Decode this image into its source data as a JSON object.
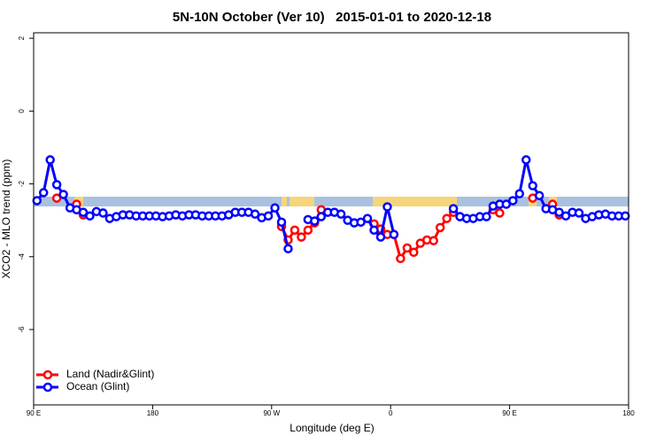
{
  "chart_data": {
    "type": "line",
    "title": "5N-10N October (Ver 10)   2015-01-01 to 2020-12-18",
    "x_label": "Longitude (deg E)",
    "y_label": "XCO2 - MLO trend (ppm)",
    "xlim": [
      90,
      540
    ],
    "xticks": [
      {
        "value": 90,
        "label": "90 E"
      },
      {
        "value": 180,
        "label": "180"
      },
      {
        "value": 270,
        "label": "90 W"
      },
      {
        "value": 360,
        "label": "0"
      },
      {
        "value": 450,
        "label": "90 E"
      },
      {
        "value": 540,
        "label": "180"
      }
    ],
    "ylim": [
      -8.07,
      2.15
    ],
    "yticks": [
      -6,
      -4,
      -2,
      0,
      2
    ],
    "legend": "bottom-left",
    "x": [
      92.5,
      97.5,
      102.5,
      107.5,
      112.5,
      117.5,
      122.5,
      127.5,
      132.5,
      137.5,
      142.5,
      147.5,
      152.5,
      157.5,
      162.5,
      167.5,
      172.5,
      177.5,
      182.5,
      187.5,
      192.5,
      197.5,
      202.5,
      207.5,
      212.5,
      217.5,
      222.5,
      227.5,
      232.5,
      237.5,
      242.5,
      247.5,
      252.5,
      257.5,
      262.5,
      267.5,
      272.5,
      277.5,
      282.5,
      287.5,
      292.5,
      297.5,
      302.5,
      307.5,
      312.5,
      317.5,
      322.5,
      327.5,
      332.5,
      337.5,
      342.5,
      347.5,
      352.5,
      357.5,
      362.5,
      367.5,
      372.5,
      377.5,
      382.5,
      387.5,
      392.5,
      397.5,
      402.5,
      407.5,
      412.5,
      417.5,
      422.5,
      427.5,
      432.5,
      437.5,
      442.5,
      447.5,
      452.5,
      457.5,
      462.5,
      467.5,
      472.5,
      477.5,
      482.5,
      487.5,
      492.5,
      497.5,
      502.5,
      507.5,
      512.5,
      517.5,
      522.5,
      527.5,
      532.5,
      537.5
    ],
    "series": [
      {
        "name": "Land (Nadir&Glint)",
        "color": "#ff0000",
        "values": [
          null,
          null,
          null,
          -2.39,
          null,
          null,
          -2.56,
          -2.85,
          null,
          null,
          null,
          null,
          null,
          null,
          null,
          null,
          null,
          null,
          null,
          null,
          null,
          null,
          null,
          null,
          null,
          null,
          null,
          null,
          null,
          null,
          null,
          null,
          null,
          null,
          null,
          null,
          null,
          -3.17,
          -3.54,
          -3.27,
          -3.46,
          -3.27,
          -3.07,
          -2.71,
          null,
          null,
          null,
          null,
          null,
          null,
          null,
          -3.1,
          -3.24,
          -3.39,
          -3.39,
          -4.05,
          -3.76,
          -3.88,
          -3.63,
          -3.54,
          -3.56,
          -3.2,
          -2.95,
          -2.78,
          -2.9,
          null,
          null,
          null,
          null,
          -2.71,
          -2.8,
          null,
          null,
          null,
          null,
          -2.39,
          null,
          null,
          -2.56,
          -2.85,
          null,
          null,
          null,
          null,
          null,
          null,
          null,
          null,
          null,
          null
        ]
      },
      {
        "name": "Ocean (Glint)",
        "color": "#0000ff",
        "values": [
          -2.46,
          -2.24,
          -1.34,
          -2.02,
          -2.29,
          -2.66,
          -2.71,
          -2.78,
          -2.88,
          -2.76,
          -2.8,
          -2.95,
          -2.9,
          -2.85,
          -2.85,
          -2.88,
          -2.88,
          -2.88,
          -2.88,
          -2.9,
          -2.88,
          -2.85,
          -2.88,
          -2.85,
          -2.85,
          -2.88,
          -2.88,
          -2.88,
          -2.88,
          -2.85,
          -2.78,
          -2.78,
          -2.78,
          -2.83,
          -2.93,
          -2.88,
          -2.66,
          -3.05,
          -3.78,
          null,
          null,
          -2.98,
          -3.02,
          -2.9,
          -2.78,
          -2.78,
          -2.83,
          -3.0,
          -3.07,
          -3.05,
          -2.95,
          -3.27,
          -3.46,
          -2.63,
          -3.39,
          null,
          null,
          null,
          null,
          null,
          null,
          null,
          null,
          -2.68,
          -2.9,
          -2.95,
          -2.95,
          -2.9,
          -2.9,
          -2.61,
          -2.56,
          -2.56,
          -2.46,
          -2.27,
          -1.34,
          -2.05,
          -2.32,
          -2.68,
          -2.71,
          -2.78,
          -2.88,
          -2.78,
          -2.8,
          -2.95,
          -2.9,
          -2.85,
          -2.83,
          -2.88,
          -2.88,
          -2.88
        ]
      }
    ]
  }
}
